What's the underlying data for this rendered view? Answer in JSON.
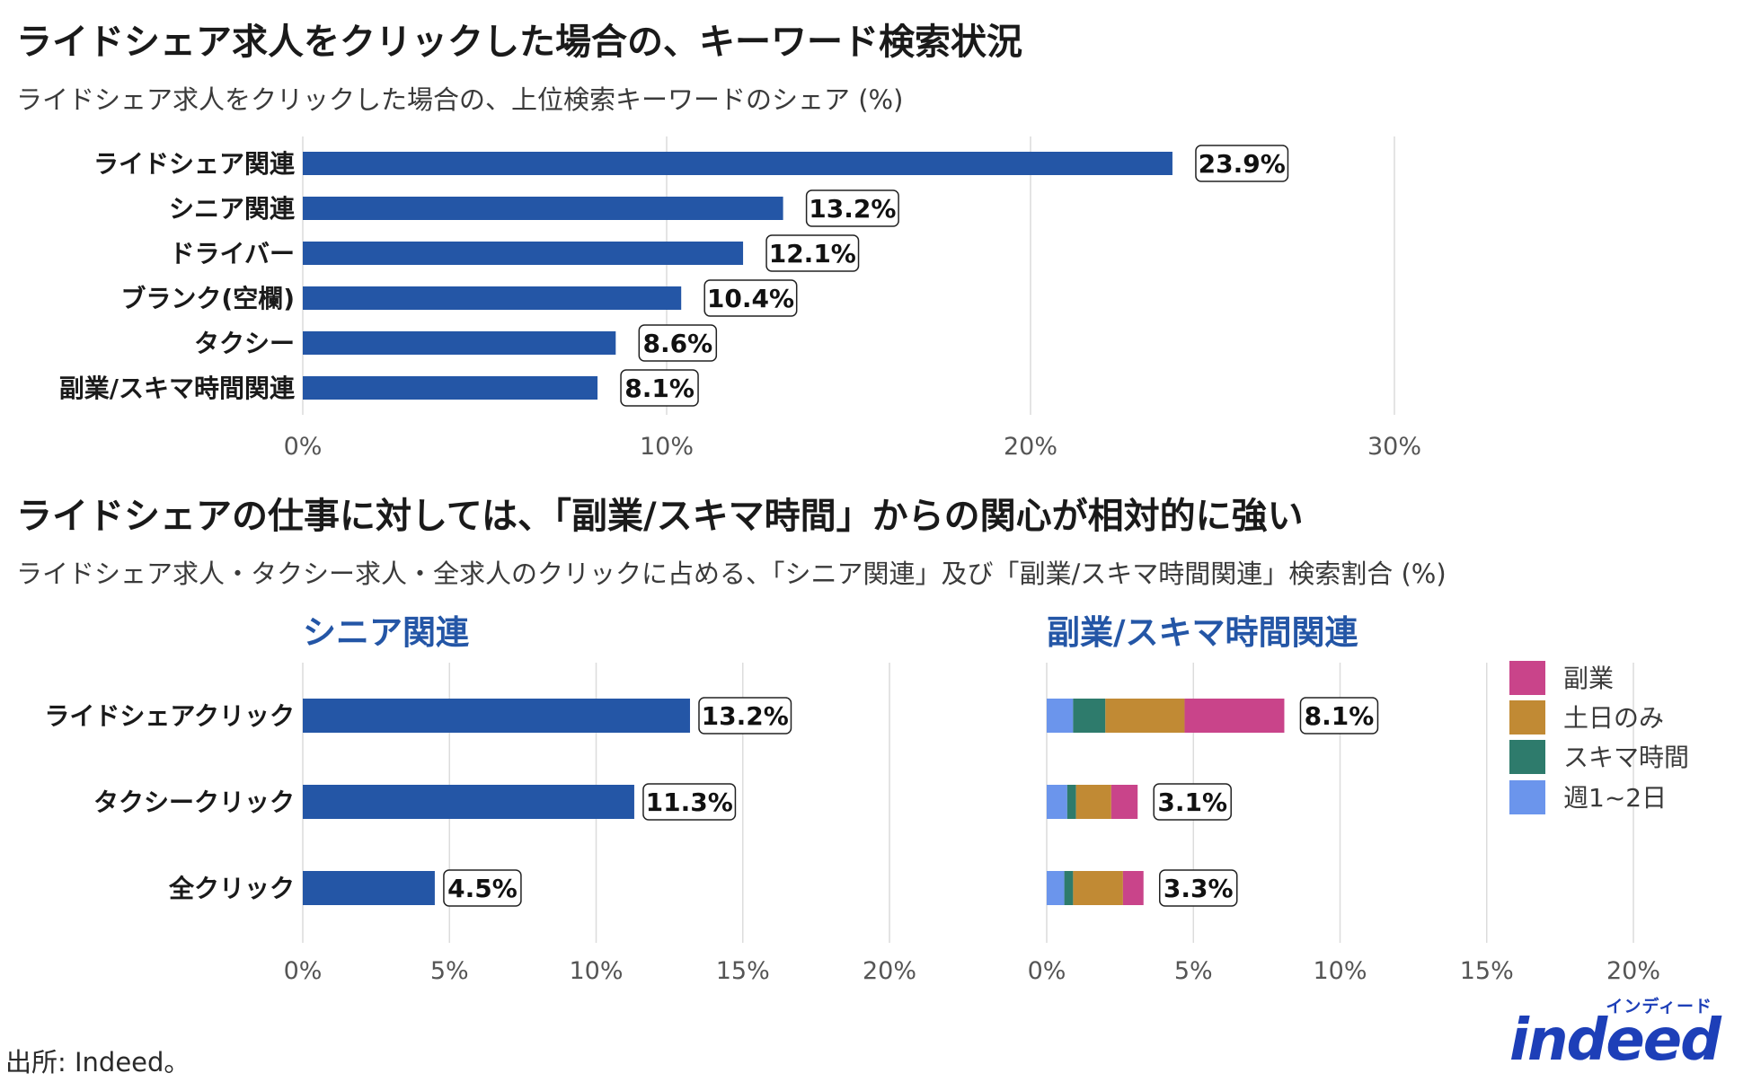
{
  "colors": {
    "bar": "#2456a6",
    "grid": "#dcdcdc",
    "side_job": "#c9448a",
    "weekend": "#c18a34",
    "spare_time": "#2e7b6c",
    "one_two_days": "#6b95ec",
    "logo": "#1d3fb8"
  },
  "header1": {
    "title": "ライドシェア求人をクリックした場合の、キーワード検索状況",
    "subtitle": "ライドシェア求人をクリックした場合の、上位検索キーワードのシェア (%)"
  },
  "header2": {
    "title": "ライドシェアの仕事に対しては、「副業/スキマ時間」からの関心が相対的に強い",
    "subtitle": "ライドシェア求人・タクシー求人・全求人のクリックに占める、「シニア関連」及び「副業/スキマ時間関連」検索割合 (%)"
  },
  "source": "出所: Indeed。",
  "logo": {
    "kana": "インディード",
    "word": "indeed"
  },
  "chart_data": [
    {
      "type": "bar",
      "orientation": "horizontal",
      "title": "ライドシェア求人をクリックした場合の、上位検索キーワードのシェア (%)",
      "categories": [
        "ライドシェア関連",
        "シニア関連",
        "ドライバー",
        "ブランク(空欄)",
        "タクシー",
        "副業/スキマ時間関連"
      ],
      "values": [
        23.9,
        13.2,
        12.1,
        10.4,
        8.6,
        8.1
      ],
      "labels": [
        "23.9%",
        "13.2%",
        "12.1%",
        "10.4%",
        "8.6%",
        "8.1%"
      ],
      "xlim": [
        0,
        30
      ],
      "xticks": [
        0,
        10,
        20,
        30
      ],
      "xtick_labels": [
        "0%",
        "10%",
        "20%",
        "30%"
      ],
      "grid": true
    },
    {
      "type": "bar",
      "orientation": "horizontal",
      "panel_title": "シニア関連",
      "categories": [
        "ライドシェアクリック",
        "タクシークリック",
        "全クリック"
      ],
      "values": [
        13.2,
        11.3,
        4.5
      ],
      "labels": [
        "13.2%",
        "11.3%",
        "4.5%"
      ],
      "xlim": [
        0,
        20
      ],
      "xticks": [
        0,
        5,
        10,
        15,
        20
      ],
      "xtick_labels": [
        "0%",
        "5%",
        "10%",
        "15%",
        "20%"
      ],
      "grid": true
    },
    {
      "type": "bar",
      "stacked": true,
      "orientation": "horizontal",
      "panel_title": "副業/スキマ時間関連",
      "categories": [
        "ライドシェアクリック",
        "タクシークリック",
        "全クリック"
      ],
      "series": [
        {
          "name": "週1~2日",
          "values": [
            0.9,
            0.7,
            0.6
          ]
        },
        {
          "name": "スキマ時間",
          "values": [
            1.1,
            0.3,
            0.3
          ]
        },
        {
          "name": "土日のみ",
          "values": [
            2.7,
            1.2,
            1.7
          ]
        },
        {
          "name": "副業",
          "values": [
            3.4,
            0.9,
            0.7
          ]
        }
      ],
      "totals": [
        8.1,
        3.1,
        3.3
      ],
      "labels": [
        "8.1%",
        "3.1%",
        "3.3%"
      ],
      "legend": [
        "副業",
        "土日のみ",
        "スキマ時間",
        "週1~2日"
      ],
      "legend_position": "right",
      "xlim": [
        0,
        20
      ],
      "xticks": [
        0,
        5,
        10,
        15,
        20
      ],
      "xtick_labels": [
        "0%",
        "5%",
        "10%",
        "15%",
        "20%"
      ],
      "grid": true
    }
  ]
}
